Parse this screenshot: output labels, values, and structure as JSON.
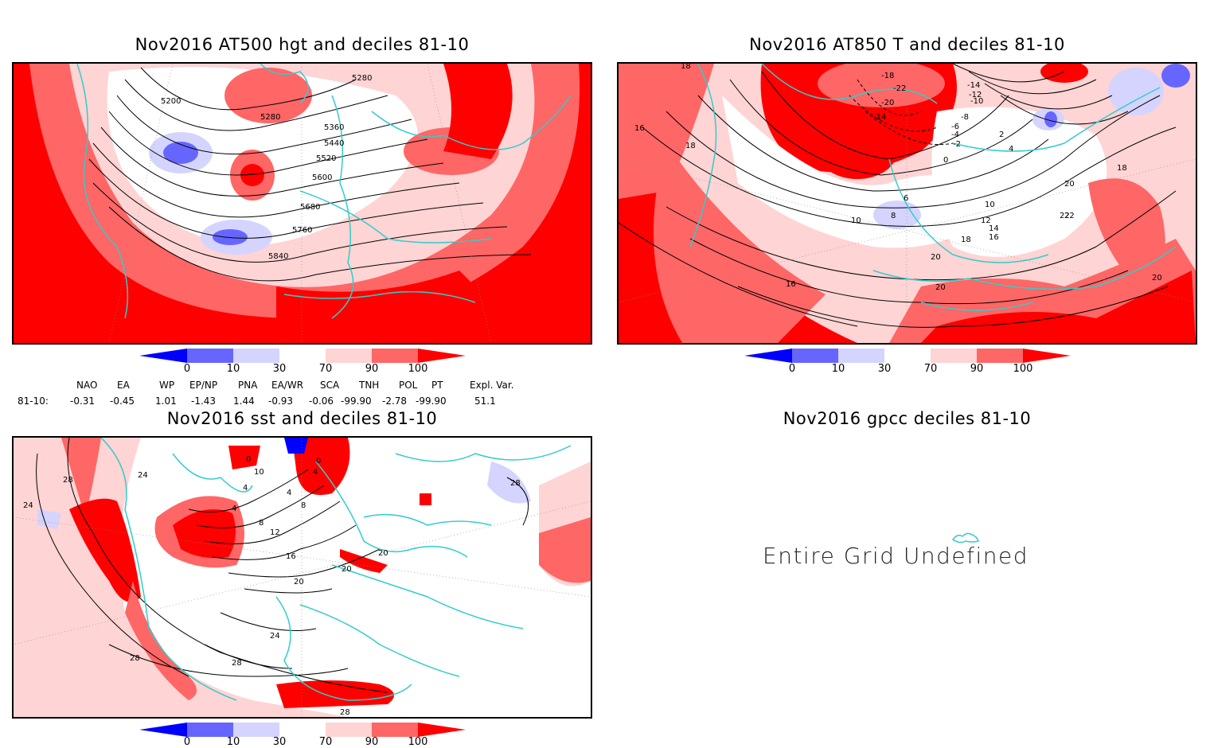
{
  "colors": {
    "d0": "#0000ff",
    "d10": "#6666ff",
    "d30": "#d4d4ff",
    "d70": "#ffd4d4",
    "d90": "#ff6666",
    "d100": "#ff0000",
    "coast": "#33cccc",
    "contour": "#000000"
  },
  "panels": {
    "p1": {
      "title": "Nov2016 AT500 hgt and deciles 81-10",
      "contours": [
        "5200",
        "5280",
        "5280",
        "5360",
        "5440",
        "5520",
        "5600",
        "5680",
        "5760",
        "5840"
      ]
    },
    "p2": {
      "title": "Nov2016 AT850 T and deciles 81-10",
      "contours": [
        "18",
        "16",
        "18",
        "-18",
        "-22",
        "-20",
        "-14",
        "-14",
        "-12",
        "-10",
        "-8",
        "-6",
        "-4",
        "-2",
        "0",
        "2",
        "4",
        "6",
        "8",
        "10",
        "10",
        "12",
        "14",
        "16",
        "18",
        "20",
        "22",
        "18",
        "20",
        "22",
        "20",
        "16",
        "20"
      ]
    },
    "p3": {
      "title": "Nov2016 sst and deciles 81-10",
      "contours": [
        "28",
        "24",
        "24",
        "0",
        "4",
        "10",
        "4",
        "4",
        "8",
        "8",
        "12",
        "16",
        "20",
        "20",
        "20",
        "24",
        "28",
        "28",
        "28",
        "28",
        "0",
        "4"
      ]
    },
    "p4": {
      "title": "Nov2016 gpcc deciles 81-10",
      "message": "Entire Grid Undefined"
    }
  },
  "colorbar": {
    "labels": [
      "0",
      "10",
      "30",
      "70",
      "90",
      "100"
    ]
  },
  "indices": {
    "headers": [
      "NAO",
      "EA",
      "WP",
      "EP/NP",
      "PNA",
      "EA/WR",
      "SCA",
      "TNH",
      "POL",
      "PT",
      "Expl. Var."
    ],
    "row_label": "81-10:",
    "values": [
      "-0.31",
      "-0.45",
      "1.01",
      "-1.43",
      "1.44",
      "-0.93",
      "-0.06",
      "-99.90",
      "-2.78",
      "-99.90",
      "51.1"
    ]
  }
}
